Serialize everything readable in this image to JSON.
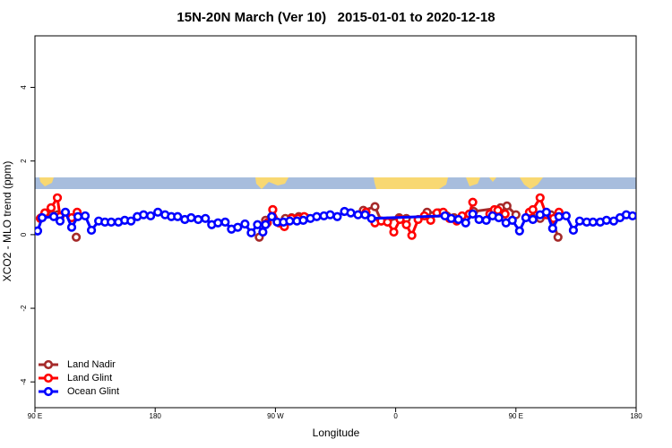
{
  "chart_data": {
    "type": "line",
    "title": "15N-20N March (Ver 10)   2015-01-01 to 2020-12-18",
    "x_label": "Longitude",
    "y_label": "XCO2 - MLO trend (ppm)",
    "xlim": [
      90,
      540
    ],
    "xticks": [
      {
        "value": 90,
        "label": "90 E"
      },
      180,
      {
        "value": 270,
        "label": "90 W"
      },
      {
        "value": 360,
        "label": "0"
      },
      {
        "value": 450,
        "label": "90 E"
      },
      {
        "value": 540,
        "label": "180"
      }
    ],
    "ylim": [
      -4.7,
      5.4
    ],
    "yticks": [
      -4,
      -2,
      0,
      2,
      4
    ],
    "legend": "bottom-left",
    "series": [
      {
        "name": "Land Nadir",
        "color": "#a52a2a",
        "x": [
          94.7,
          99.4,
          102.8,
          106.8,
          null,
          120.9,
          null,
          257.9,
          262.6,
          268.0,
          null,
          277.4,
          282.1,
          287.5,
          292.8,
          null,
          335.8,
          344.5,
          349.2,
          353.9,
          362.6,
          368.0,
          null,
          383.5,
          392.2,
          398.3,
          403.6,
          null,
          418.4,
          438.6,
          443.3,
          450.0,
          null,
          461.4,
          468.1,
          476.2,
          481.5
        ],
        "values": [
          0.46,
          0.59,
          0.54,
          0.54,
          null,
          -0.07,
          null,
          -0.07,
          0.39,
          0.68,
          null,
          0.44,
          0.46,
          0.49,
          0.46,
          null,
          0.66,
          0.76,
          0.37,
          0.37,
          0.46,
          0.44,
          null,
          0.61,
          0.59,
          0.51,
          0.46,
          null,
          0.63,
          0.73,
          0.78,
          0.54,
          null,
          0.51,
          0.44,
          0.54,
          -0.07
        ]
      },
      {
        "name": "Land Glint",
        "color": "#ff0000",
        "x": [
          94.0,
          97.4,
          102.1,
          106.8,
          108.8,
          null,
          117.5,
          121.6,
          null,
          263.9,
          268.0,
          272.7,
          276.7,
          282.1,
          286.8,
          291.5,
          null,
          337.8,
          344.5,
          349.2,
          353.9,
          358.6,
          363.3,
          368.0,
          372.1,
          376.8,
          381.5,
          386.2,
          390.9,
          395.6,
          400.3,
          405.7,
          409.7,
          415.1,
          417.7,
          null,
          430.5,
          433.9,
          436.5,
          441.9,
          null,
          460.1,
          462.7,
          468.1,
          472.8,
          478.2,
          482.2
        ],
        "values": [
          0.44,
          0.59,
          0.73,
          1.0,
          0.49,
          null,
          0.46,
          0.61,
          null,
          0.32,
          0.68,
          0.32,
          0.22,
          0.44,
          0.44,
          0.49,
          null,
          0.61,
          0.32,
          0.37,
          0.34,
          0.07,
          0.41,
          0.27,
          -0.02,
          0.41,
          0.51,
          0.39,
          0.59,
          0.61,
          0.44,
          0.37,
          0.51,
          0.56,
          0.88,
          null,
          0.56,
          0.68,
          0.66,
          0.56,
          null,
          0.61,
          0.68,
          1.0,
          0.54,
          0.44,
          0.61
        ]
      },
      {
        "name": "Ocean Glint",
        "color": "#0000ff",
        "x": [
          92.0,
          95.4,
          104.1,
          108.8,
          112.8,
          117.5,
          122.2,
          127.6,
          132.3,
          137.7,
          142.4,
          147.1,
          152.5,
          157.2,
          161.9,
          166.6,
          171.3,
          176.6,
          182.0,
          187.4,
          192.1,
          196.8,
          202.2,
          206.9,
          212.2,
          217.6,
          222.3,
          227.0,
          232.4,
          237.1,
          241.8,
          247.2,
          251.9,
          256.6,
          260.6,
          262.6,
          267.3,
          271.3,
          276.0,
          280.7,
          286.1,
          290.8,
          296.2,
          300.9,
          306.3,
          311.0,
          316.3,
          321.7,
          326.4,
          331.8,
          337.1,
          341.9,
          396.9,
          401.6,
          407.0,
          412.4,
          417.7,
          422.4,
          427.8,
          432.5,
          437.2,
          442.6,
          447.3,
          452.7,
          457.4,
          462.7,
          468.1,
          472.8,
          477.5,
          482.2,
          487.6,
          493.0,
          497.7,
          503.0,
          507.7,
          513.1,
          517.8,
          523.2,
          527.9,
          532.6,
          537.3
        ],
        "values": [
          0.1,
          0.46,
          0.49,
          0.37,
          0.61,
          0.2,
          0.49,
          0.51,
          0.12,
          0.37,
          0.34,
          0.34,
          0.34,
          0.39,
          0.37,
          0.49,
          0.54,
          0.51,
          0.61,
          0.54,
          0.49,
          0.49,
          0.41,
          0.46,
          0.41,
          0.44,
          0.27,
          0.32,
          0.34,
          0.15,
          0.2,
          0.29,
          0.05,
          0.27,
          0.07,
          0.27,
          0.49,
          0.34,
          0.34,
          0.37,
          0.37,
          0.39,
          0.44,
          0.49,
          0.51,
          0.54,
          0.49,
          0.63,
          0.59,
          0.54,
          0.54,
          0.44,
          0.51,
          0.44,
          0.41,
          0.32,
          0.56,
          0.41,
          0.39,
          0.51,
          0.46,
          0.32,
          0.39,
          0.1,
          0.46,
          0.41,
          0.54,
          0.61,
          0.17,
          0.49,
          0.51,
          0.12,
          0.37,
          0.34,
          0.34,
          0.34,
          0.39,
          0.37,
          0.46,
          0.54,
          0.51
        ]
      }
    ]
  }
}
